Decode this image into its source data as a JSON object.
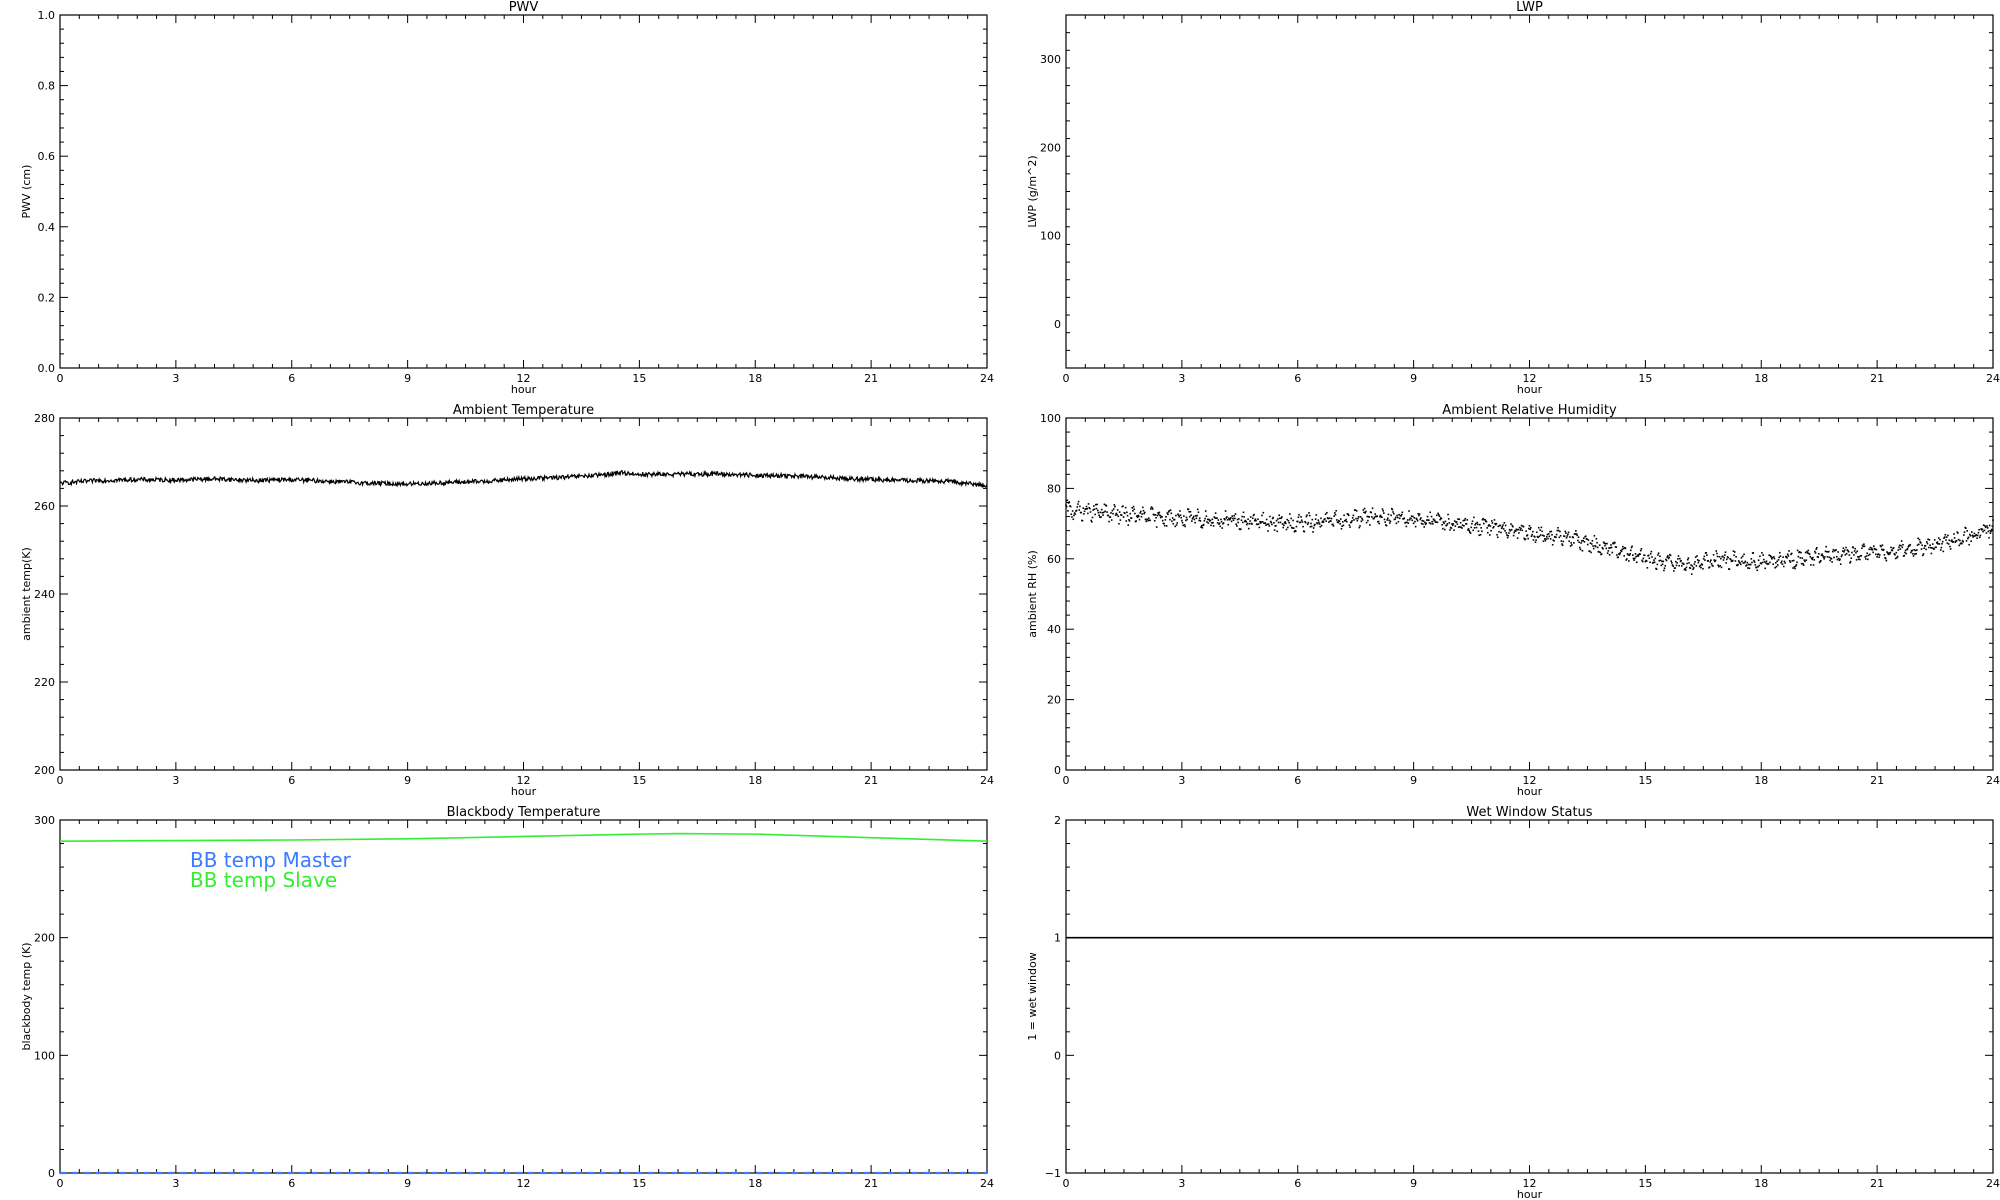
{
  "chart_data": [
    {
      "type": "line",
      "title": "PWV",
      "xlabel": "hour",
      "ylabel": "PWV (cm)",
      "xlim": [
        0,
        24
      ],
      "ylim": [
        0.0,
        1.0
      ],
      "x_ticks": [
        0,
        3,
        6,
        9,
        12,
        15,
        18,
        21,
        24
      ],
      "y_ticks": [
        0.0,
        0.2,
        0.4,
        0.6,
        0.8,
        1.0
      ],
      "y_tick_labels": [
        "0.0",
        "0.2",
        "0.4",
        "0.6",
        "0.8",
        "1.0"
      ],
      "series": []
    },
    {
      "type": "line",
      "title": "LWP",
      "xlabel": "hour",
      "ylabel": "LWP (g/m^2)",
      "xlim": [
        0,
        24
      ],
      "ylim": [
        -50,
        350
      ],
      "x_ticks": [
        0,
        3,
        6,
        9,
        12,
        15,
        18,
        21,
        24
      ],
      "y_ticks": [
        0,
        100,
        200,
        300
      ],
      "y_tick_labels": [
        "0",
        "100",
        "200",
        "300"
      ],
      "series": []
    },
    {
      "type": "line",
      "title": "Ambient Temperature",
      "xlabel": "hour",
      "ylabel": "ambient temp(K)",
      "xlim": [
        0,
        24
      ],
      "ylim": [
        200,
        280
      ],
      "x_ticks": [
        0,
        3,
        6,
        9,
        12,
        15,
        18,
        21,
        24
      ],
      "y_ticks": [
        200,
        220,
        240,
        260,
        280
      ],
      "y_tick_labels": [
        "200",
        "220",
        "240",
        "260",
        "280"
      ],
      "series": [
        {
          "color": "#000000",
          "x": [
            0,
            1,
            2,
            3,
            4,
            5,
            6,
            7,
            8,
            9,
            10,
            11,
            12,
            13,
            14,
            14.5,
            15,
            16,
            17,
            18,
            19,
            20,
            21,
            22,
            23,
            24
          ],
          "y": [
            265.2,
            265.8,
            266.0,
            265.9,
            266.2,
            265.8,
            266.0,
            265.6,
            265.2,
            265.0,
            265.3,
            265.6,
            266.2,
            266.5,
            267.0,
            267.6,
            267.2,
            267.2,
            267.3,
            267.0,
            266.8,
            266.4,
            266.0,
            265.8,
            265.6,
            264.6
          ],
          "noise": 0.5
        }
      ]
    },
    {
      "type": "scatter",
      "title": "Ambient Relative Humidity",
      "xlabel": "hour",
      "ylabel": "ambient RH (%)",
      "xlim": [
        0,
        24
      ],
      "ylim": [
        0,
        100
      ],
      "x_ticks": [
        0,
        3,
        6,
        9,
        12,
        15,
        18,
        21,
        24
      ],
      "y_ticks": [
        0,
        20,
        40,
        60,
        80,
        100
      ],
      "y_tick_labels": [
        "0",
        "20",
        "40",
        "60",
        "80",
        "100"
      ],
      "series": [
        {
          "color": "#000000",
          "x": [
            0,
            1,
            2,
            3,
            4,
            5,
            6,
            7,
            8,
            9,
            10,
            11,
            12,
            13,
            14,
            15,
            16,
            17,
            18,
            19,
            20,
            21,
            22,
            23,
            24
          ],
          "y": [
            74,
            73,
            72,
            71.5,
            71,
            70.5,
            70,
            71,
            72,
            71.5,
            70,
            69,
            67,
            66,
            63,
            60,
            58,
            60,
            59,
            60,
            61,
            62,
            63,
            65,
            69
          ],
          "noise": 1.8
        }
      ]
    },
    {
      "type": "line",
      "title": "Blackbody Temperature",
      "xlabel": "",
      "ylabel": "blackbody temp (K)",
      "xlim": [
        0,
        24
      ],
      "ylim": [
        0,
        300
      ],
      "x_ticks": [
        0,
        3,
        6,
        9,
        12,
        15,
        18,
        21,
        24
      ],
      "y_ticks": [
        0,
        100,
        200,
        300
      ],
      "y_tick_labels": [
        "0",
        "100",
        "200",
        "300"
      ],
      "legend": [
        {
          "label": "BB temp Master",
          "color": "#3a7bff"
        },
        {
          "label": "BB temp Slave",
          "color": "#33ee33"
        }
      ],
      "series": [
        {
          "name": "BB temp Master",
          "color": "#3a7bff",
          "style": "dashed",
          "x": [
            0,
            24
          ],
          "y": [
            0,
            0
          ]
        },
        {
          "name": "BB temp Slave",
          "color": "#33ee33",
          "style": "solid",
          "x": [
            0,
            3,
            6,
            9,
            12,
            15,
            16,
            18,
            21,
            24
          ],
          "y": [
            282,
            282.5,
            283,
            284,
            286,
            288,
            288.5,
            288,
            285,
            282
          ]
        }
      ]
    },
    {
      "type": "line",
      "title": "Wet Window Status",
      "xlabel": "hour",
      "ylabel": "1 = wet window",
      "xlim": [
        0,
        24
      ],
      "ylim": [
        -1,
        2
      ],
      "x_ticks": [
        0,
        3,
        6,
        9,
        12,
        15,
        18,
        21,
        24
      ],
      "y_ticks": [
        -1,
        0,
        1,
        2
      ],
      "y_tick_labels": [
        "−1",
        "0",
        "1",
        "2"
      ],
      "series": [
        {
          "color": "#000000",
          "x": [
            0,
            24
          ],
          "y": [
            1,
            1
          ]
        }
      ]
    }
  ]
}
